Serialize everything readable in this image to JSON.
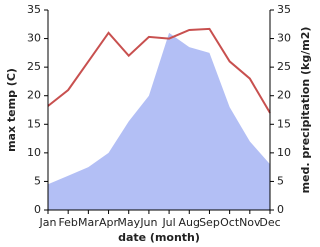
{
  "chart_data": {
    "type": "line",
    "categories": [
      "Jan",
      "Feb",
      "Mar",
      "Apr",
      "May",
      "Jun",
      "Jul",
      "Aug",
      "Sep",
      "Oct",
      "Nov",
      "Dec"
    ],
    "xlabel": "date (month)",
    "ylabel": "max temp (C)",
    "y2label": "med. precipitation (kg/m2)",
    "ylim": [
      0,
      35
    ],
    "yticks": [
      0,
      5,
      10,
      15,
      20,
      25,
      30,
      35
    ],
    "y2lim": [
      0,
      35
    ],
    "y2ticks": [
      0,
      5,
      10,
      15,
      20,
      25,
      30,
      35
    ],
    "series": [
      {
        "color": "#b3bff5",
        "fill": true,
        "axis": "y2",
        "values": [
          4.5,
          6,
          7.5,
          10,
          15.5,
          20,
          31,
          28.5,
          27.5,
          18,
          12,
          8
        ]
      },
      {
        "color": "#c8504f",
        "fill": false,
        "values": [
          18.2,
          21,
          26,
          31,
          27,
          30.3,
          30,
          31.5,
          31.7,
          26,
          23,
          17
        ]
      }
    ]
  }
}
